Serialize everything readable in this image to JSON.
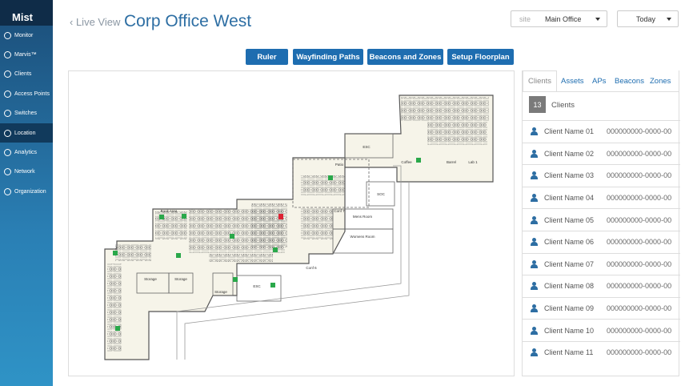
{
  "sidebar": {
    "logo": "Mist",
    "items": [
      "Monitor",
      "Marvis™",
      "Clients",
      "Access Points",
      "Switches",
      "Location",
      "Analytics",
      "Network",
      "Organization"
    ],
    "active": 5
  },
  "header": {
    "back": "Live View",
    "title": "Corp Office West",
    "site_label": "site",
    "site": "Main Office",
    "date": "Today"
  },
  "toolbar": [
    "Ruler",
    "Wayfinding Paths",
    "Beacons and Zones",
    "Setup Floorplan"
  ],
  "floorplan": {
    "labels": [
      "ESC",
      "Patio",
      "SOC",
      "Coffee",
      "Mens Room",
      "Womens Room",
      "Storage",
      "Storage",
      "Storage",
      "ESC",
      "Lab 1",
      "Barrel",
      "Book Area",
      "Conf 7",
      "Conf 6"
    ]
  },
  "panel": {
    "tabs": [
      "Clients",
      "Assets",
      "APs",
      "Beacons",
      "Zones"
    ],
    "active_tab": 0,
    "count": 13,
    "count_label": "Clients",
    "clients": [
      {
        "name": "Client Name 01",
        "id": "000000000-0000-00"
      },
      {
        "name": "Client Name 02",
        "id": "000000000-0000-00"
      },
      {
        "name": "Client Name 03",
        "id": "000000000-0000-00"
      },
      {
        "name": "Client Name 04",
        "id": "000000000-0000-00"
      },
      {
        "name": "Client Name 05",
        "id": "000000000-0000-00"
      },
      {
        "name": "Client Name 06",
        "id": "000000000-0000-00"
      },
      {
        "name": "Client Name 07",
        "id": "000000000-0000-00"
      },
      {
        "name": "Client Name 08",
        "id": "000000000-0000-00"
      },
      {
        "name": "Client Name 09",
        "id": "000000000-0000-00"
      },
      {
        "name": "Client Name 10",
        "id": "000000000-0000-00"
      },
      {
        "name": "Client Name 11",
        "id": "000000000-0000-00"
      }
    ]
  }
}
